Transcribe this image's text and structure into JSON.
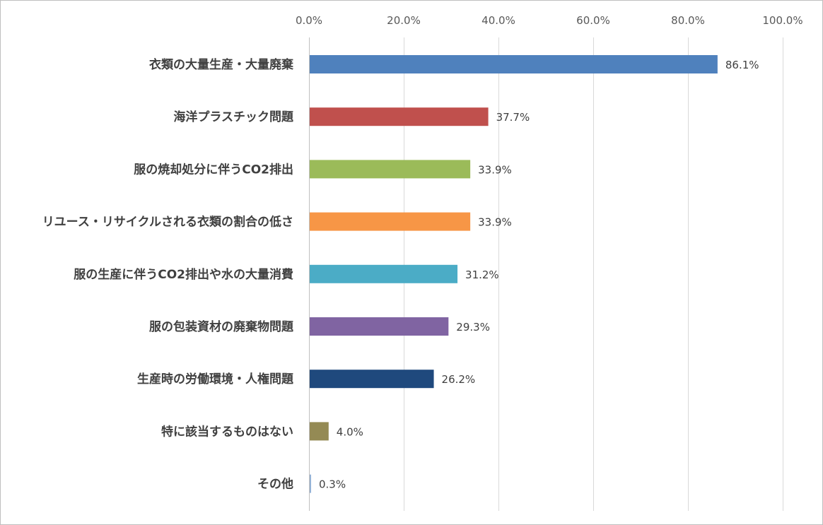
{
  "chart_data": {
    "type": "bar",
    "orientation": "horizontal",
    "title": "",
    "xlabel": "",
    "ylabel": "",
    "xlim": [
      0,
      100
    ],
    "ticks": [
      "0.0%",
      "20.0%",
      "40.0%",
      "60.0%",
      "80.0%",
      "100.0%"
    ],
    "tick_values": [
      0,
      20,
      40,
      60,
      80,
      100
    ],
    "x_axis_position": "top",
    "grid": true,
    "legend": false,
    "categories": [
      "衣類の大量生産・大量廃棄",
      "海洋プラスチック問題",
      "服の焼却処分に伴うCO2排出",
      "リユース・リサイクルされる衣類の割合の低さ",
      "服の生産に伴うCO2排出や水の大量消費",
      "服の包装資材の廃棄物問題",
      "生産時の労働環境・人権問題",
      "特に該当するものはない",
      "その他"
    ],
    "values": [
      86.1,
      37.7,
      33.9,
      33.9,
      31.2,
      29.3,
      26.2,
      4.0,
      0.3
    ],
    "data_labels": [
      "86.1%",
      "37.7%",
      "33.9%",
      "33.9%",
      "31.2%",
      "29.3%",
      "26.2%",
      "4.0%",
      "0.3%"
    ],
    "colors": [
      "#4f81bd",
      "#c0504d",
      "#9bbb59",
      "#f79646",
      "#4bacc6",
      "#8064a2",
      "#1f497d",
      "#948a54",
      "#95b3d7"
    ]
  }
}
